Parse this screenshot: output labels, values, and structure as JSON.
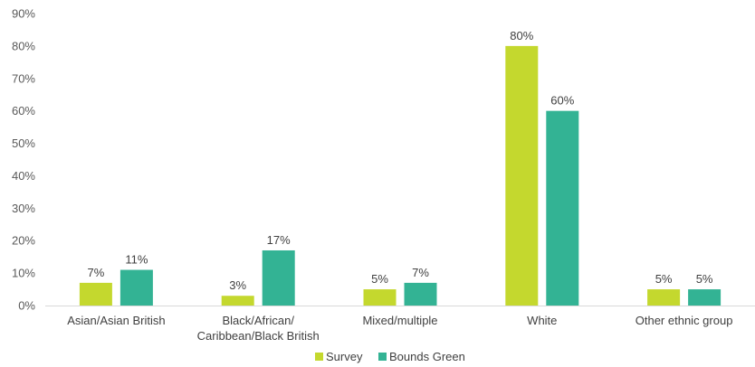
{
  "chart_data": {
    "type": "bar",
    "categories": [
      [
        "Asian/Asian British"
      ],
      [
        "Black/African/",
        "Caribbean/Black British"
      ],
      [
        "Mixed/multiple"
      ],
      [
        "White"
      ],
      [
        "Other ethnic group"
      ]
    ],
    "series": [
      {
        "name": "Survey",
        "color": "#c4d82e",
        "values": [
          7,
          3,
          5,
          80,
          5
        ],
        "labels": [
          "7%",
          "3%",
          "5%",
          "80%",
          "5%"
        ]
      },
      {
        "name": "Bounds Green",
        "color": "#33b394",
        "values": [
          11,
          17,
          7,
          60,
          5
        ],
        "labels": [
          "11%",
          "17%",
          "7%",
          "60%",
          "5%"
        ]
      }
    ],
    "ylim": [
      0,
      90
    ],
    "yticks": [
      0,
      10,
      20,
      30,
      40,
      50,
      60,
      70,
      80,
      90
    ],
    "ytick_labels": [
      "0%",
      "10%",
      "20%",
      "30%",
      "40%",
      "50%",
      "60%",
      "70%",
      "80%",
      "90%"
    ],
    "grid": false,
    "legend_position": "bottom-center"
  }
}
